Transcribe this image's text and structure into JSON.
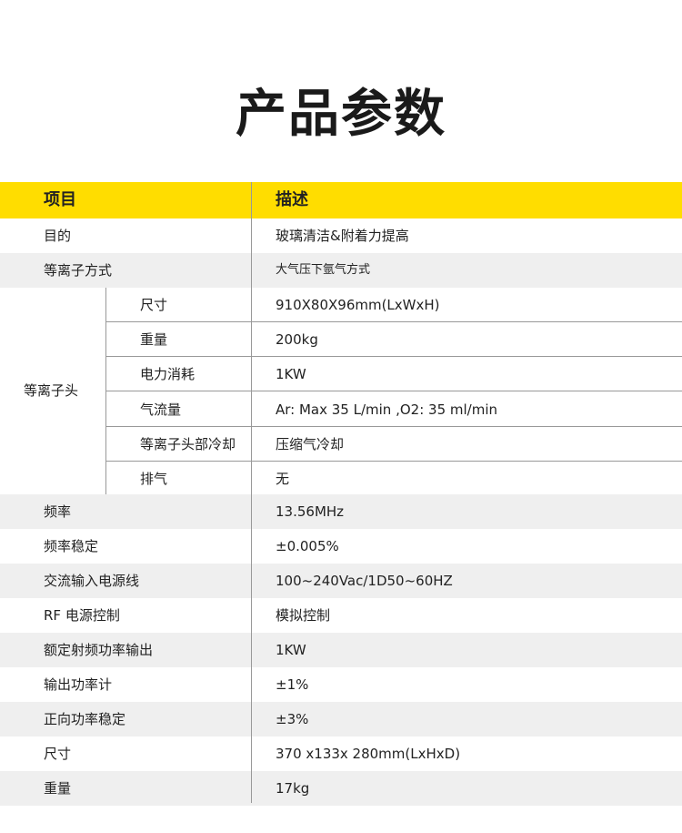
{
  "title": "产品参数",
  "header": {
    "col1": "项目",
    "col2": "描述"
  },
  "rows_top": [
    {
      "label": "目的",
      "value": "玻璃清洁&附着力提高"
    },
    {
      "label": "等离子方式",
      "value": "大气压下氩气方式"
    }
  ],
  "group": {
    "label": "等离子头",
    "items": [
      {
        "label": "尺寸",
        "value": "910X80X96mm(LxWxH)"
      },
      {
        "label": "重量",
        "value": "200kg"
      },
      {
        "label": "电力消耗",
        "value": "1KW"
      },
      {
        "label": "气流量",
        "value": "Ar: Max 35 L/min ,O2: 35 ml/min"
      },
      {
        "label": "等离子头部冷却",
        "value": "压缩气冷却"
      },
      {
        "label": "排气",
        "value": "无"
      }
    ]
  },
  "rows_bottom": [
    {
      "label": "频率",
      "value": "13.56MHz"
    },
    {
      "label": "频率稳定",
      "value": "±0.005%"
    },
    {
      "label": "交流输入电源线",
      "value": "100~240Vac/1D50~60HZ"
    },
    {
      "label": "RF 电源控制",
      "value": "模拟控制"
    },
    {
      "label": "额定射频功率输出",
      "value": "1KW"
    },
    {
      "label": "输出功率计",
      "value": "±1%"
    },
    {
      "label": "正向功率稳定",
      "value": "±3%"
    },
    {
      "label": "尺寸",
      "value": "370 x133x 280mm(LxHxD)"
    },
    {
      "label": "重量",
      "value": "17kg"
    }
  ],
  "colors": {
    "header_bg": "#FFDD00",
    "stripe": "#efefef"
  }
}
